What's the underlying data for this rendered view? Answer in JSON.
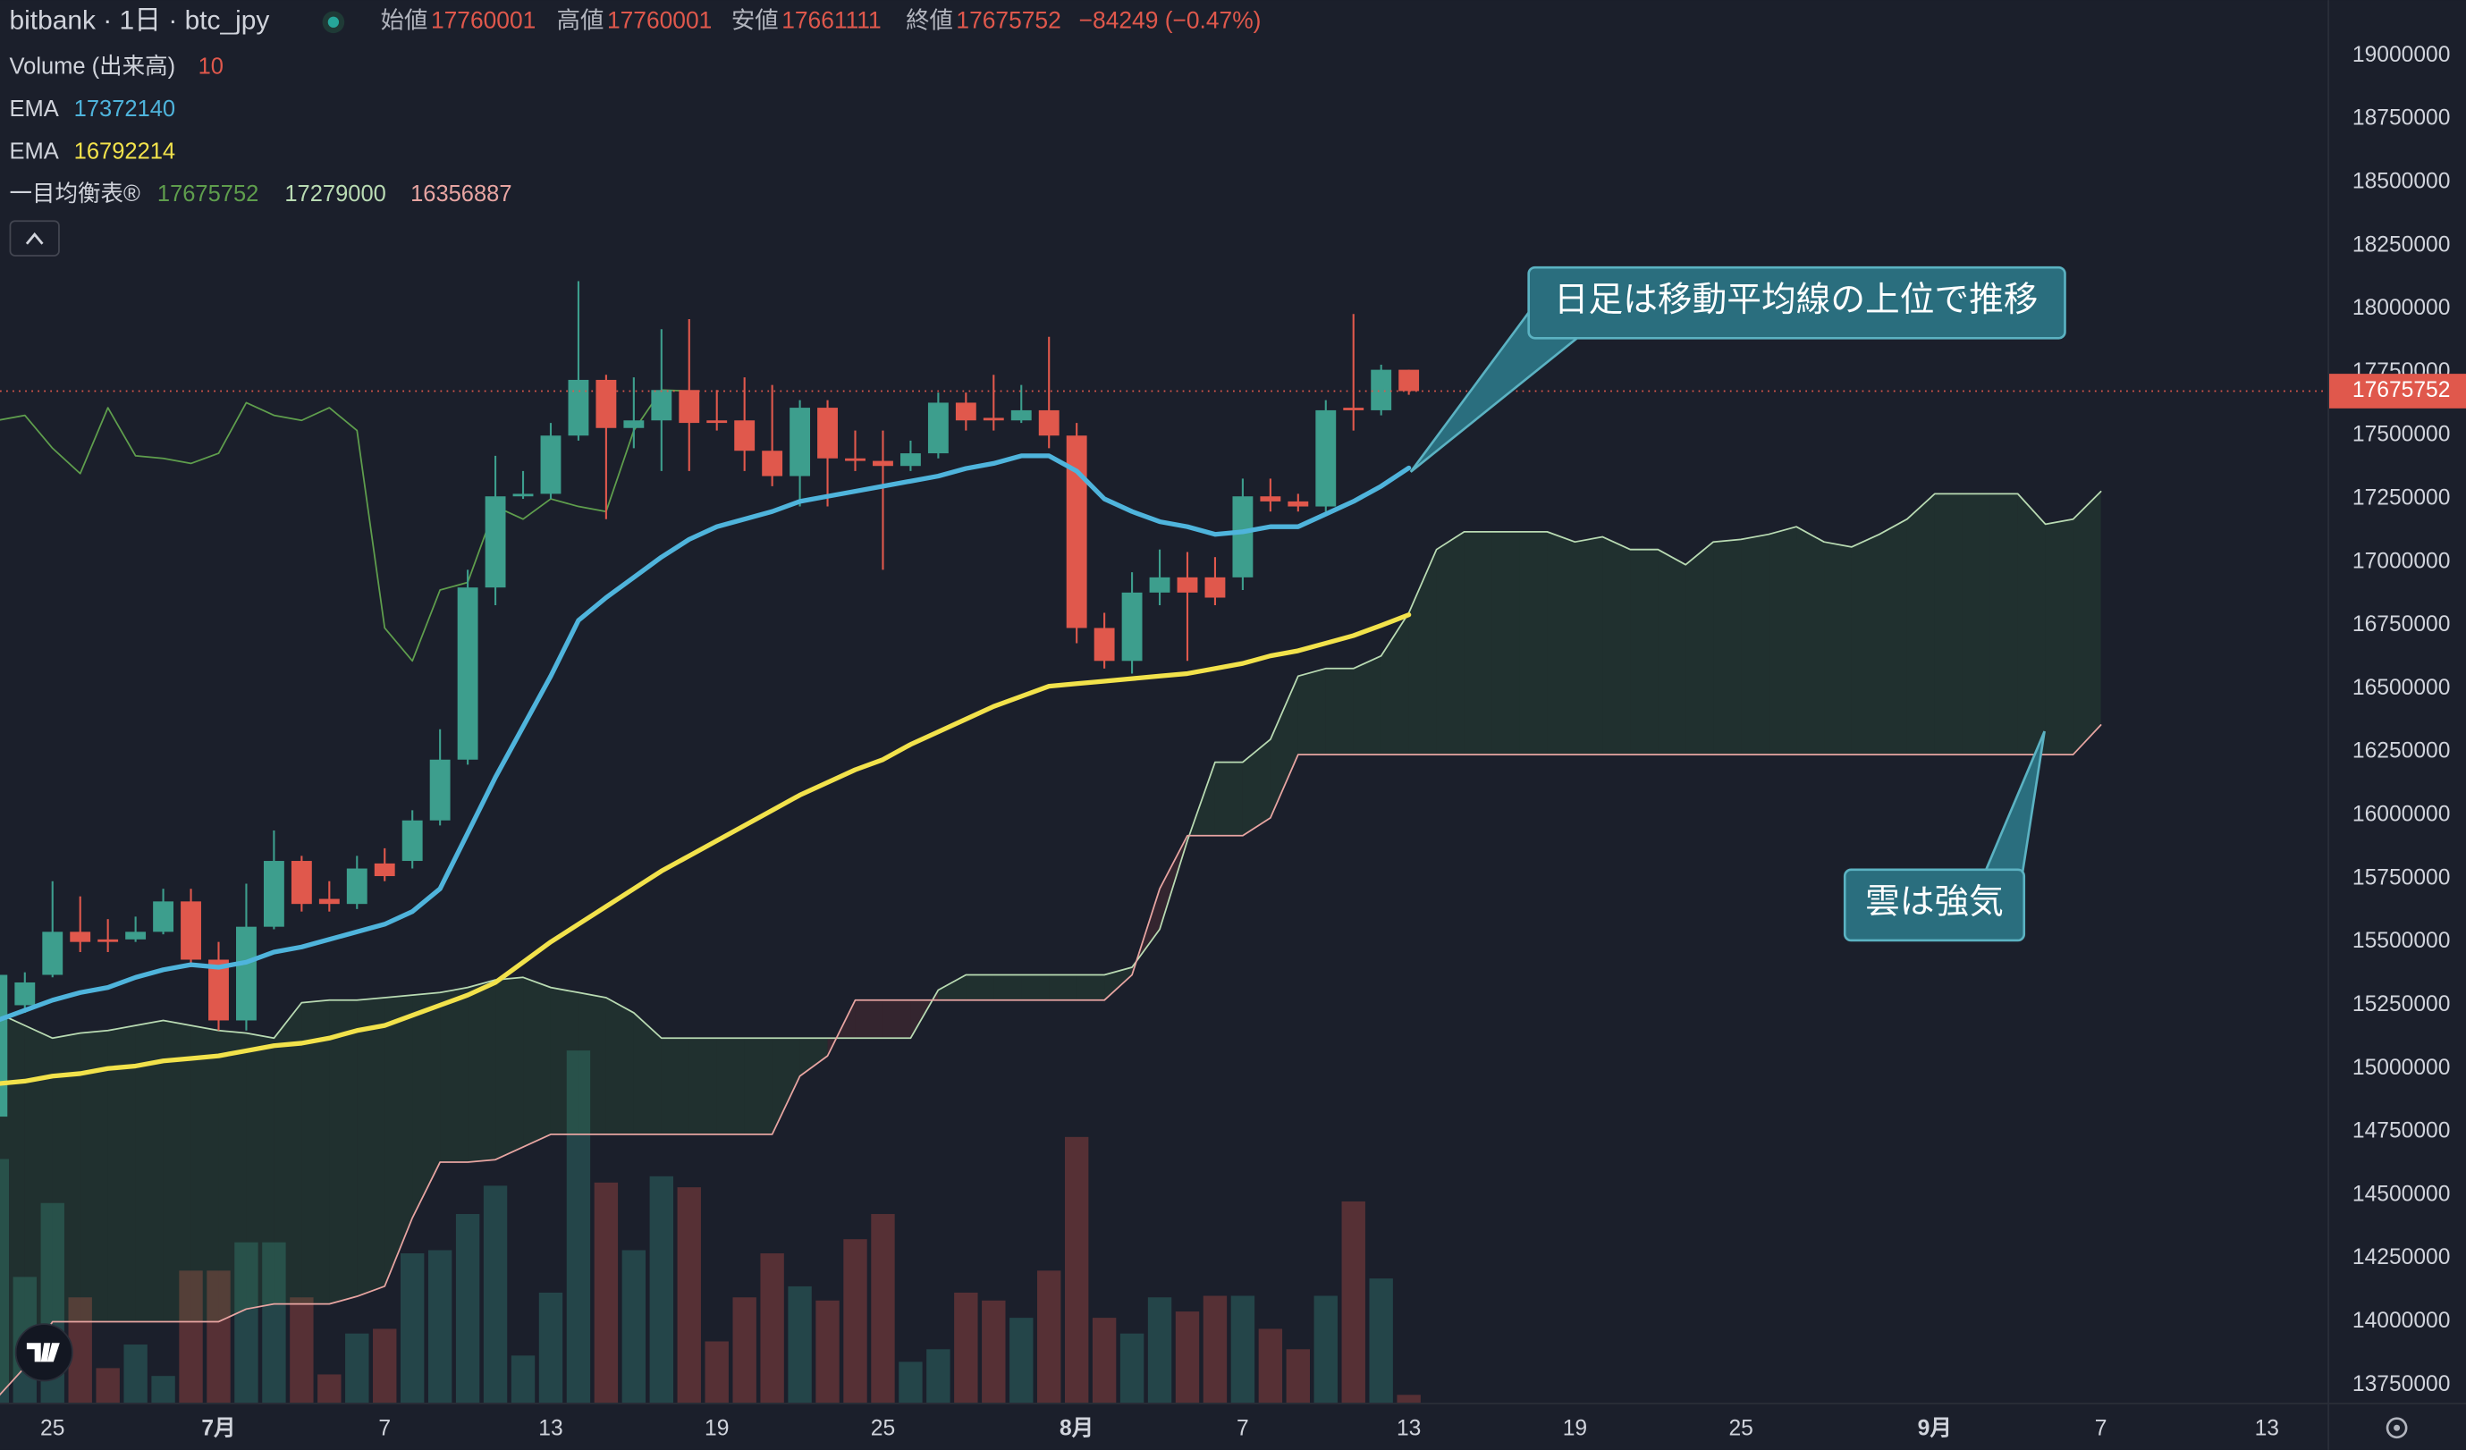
{
  "chart_data": {
    "type": "candlestick",
    "title": "bitbank · 1日 · btc_jpy",
    "ohlc_labels": [
      "始値",
      "高値",
      "安値",
      "終値"
    ],
    "change_label": "−84249 (−0.47%)",
    "up_color": "#3d9e8d",
    "down_color": "#e0584c",
    "grid": false,
    "ylim": [
      13680000,
      19220000
    ],
    "yticks": [
      13750000,
      14000000,
      14250000,
      14500000,
      14750000,
      15000000,
      15250000,
      15500000,
      15750000,
      16000000,
      16250000,
      16500000,
      16750000,
      17000000,
      17250000,
      17500000,
      17750000,
      18000000,
      18250000,
      18500000,
      18750000,
      19000000
    ],
    "categories": [
      null,
      null,
      "25",
      null,
      null,
      null,
      null,
      null,
      "7月",
      null,
      null,
      null,
      null,
      null,
      "7",
      null,
      null,
      null,
      null,
      null,
      "13",
      null,
      null,
      null,
      null,
      null,
      "19",
      null,
      null,
      null,
      null,
      null,
      "25",
      null,
      null,
      null,
      null,
      null,
      null,
      "8月",
      null,
      null,
      null,
      null,
      null,
      "7",
      null,
      null,
      null,
      null,
      null,
      "13",
      null,
      null,
      null,
      null,
      null,
      "19",
      null,
      null,
      null,
      null,
      null,
      "25",
      null,
      null,
      null,
      null,
      null,
      null,
      "9月",
      null,
      null,
      null,
      null,
      null,
      "7",
      null,
      null,
      null,
      null,
      null,
      "13"
    ],
    "open": [
      14810000,
      15250000,
      15370000,
      15540000,
      15510000,
      15510000,
      15540000,
      15660000,
      15430000,
      15190000,
      15560000,
      15820000,
      15670000,
      15650000,
      15810000,
      15820000,
      15980000,
      16220000,
      16900000,
      17260000,
      17270000,
      17500000,
      17720000,
      17530000,
      17560000,
      17680000,
      17560000,
      17560000,
      17440000,
      17340000,
      17610000,
      17410000,
      17400000,
      17380000,
      17430000,
      17630000,
      17570000,
      17560000,
      17600000,
      17500000,
      16740000,
      16610000,
      16880000,
      16940000,
      16940000,
      16940000,
      17260000,
      17240000,
      17220000,
      17610000,
      17600000,
      17760001,
      null,
      null,
      null,
      null,
      null,
      null,
      null,
      null,
      null,
      null,
      null,
      null,
      null,
      null,
      null,
      null,
      null,
      null,
      null,
      null,
      null,
      null,
      null,
      null,
      null,
      null,
      null,
      null,
      null,
      null,
      null
    ],
    "high": [
      15400000,
      15380000,
      15740000,
      15680000,
      15590000,
      15600000,
      15710000,
      15710000,
      15500000,
      15730000,
      15940000,
      15840000,
      15740000,
      15840000,
      15870000,
      16020000,
      16340000,
      16970000,
      17420000,
      17360000,
      17550000,
      18110000,
      17740000,
      17730000,
      17920000,
      17960000,
      17680000,
      17730000,
      17700000,
      17640000,
      17640000,
      17520000,
      17520000,
      17480000,
      17670000,
      17670000,
      17740000,
      17700000,
      17890000,
      17550000,
      16800000,
      16960000,
      17050000,
      17040000,
      17020000,
      17330000,
      17330000,
      17270000,
      17640000,
      17980000,
      17780000,
      17760001,
      null,
      null,
      null,
      null,
      null,
      null,
      null,
      null,
      null,
      null,
      null,
      null,
      null,
      null,
      null,
      null,
      null,
      null,
      null,
      null,
      null,
      null,
      null,
      null,
      null,
      null,
      null,
      null,
      null,
      null,
      null
    ],
    "low": [
      14800000,
      15220000,
      15360000,
      15460000,
      15460000,
      15500000,
      15530000,
      15400000,
      15150000,
      15150000,
      15550000,
      15620000,
      15620000,
      15630000,
      15740000,
      15790000,
      15960000,
      16200000,
      16830000,
      17250000,
      17250000,
      17480000,
      17170000,
      17450000,
      17360000,
      17360000,
      17520000,
      17360000,
      17300000,
      17220000,
      17220000,
      17360000,
      16970000,
      17360000,
      17410000,
      17520000,
      17520000,
      17550000,
      17450000,
      16680000,
      16580000,
      16560000,
      16830000,
      16610000,
      16830000,
      16890000,
      17200000,
      17200000,
      17200000,
      17520000,
      17580000,
      17661111,
      null,
      null,
      null,
      null,
      null,
      null,
      null,
      null,
      null,
      null,
      null,
      null,
      null,
      null,
      null,
      null,
      null,
      null,
      null,
      null,
      null,
      null,
      null,
      null,
      null,
      null,
      null,
      null,
      null,
      null,
      null
    ],
    "close": [
      15370000,
      15340000,
      15540000,
      15500000,
      15500000,
      15540000,
      15660000,
      15430000,
      15190000,
      15560000,
      15820000,
      15650000,
      15650000,
      15790000,
      15760000,
      15980000,
      16220000,
      16900000,
      17260000,
      17270000,
      17500000,
      17720000,
      17530000,
      17560000,
      17680000,
      17550000,
      17550000,
      17440000,
      17340000,
      17610000,
      17410000,
      17400000,
      17380000,
      17430000,
      17630000,
      17560000,
      17560000,
      17600000,
      17500000,
      16740000,
      16610000,
      16880000,
      16940000,
      16880000,
      16860000,
      17260000,
      17240000,
      17220000,
      17600000,
      17600000,
      17760000,
      17675752,
      null,
      null,
      null,
      null,
      null,
      null,
      null,
      null,
      null,
      null,
      null,
      null,
      null,
      null,
      null,
      null,
      null,
      null,
      null,
      null,
      null,
      null,
      null,
      null,
      null,
      null,
      null,
      null,
      null,
      null,
      null
    ],
    "volume": {
      "name": "Volume (出来高)",
      "values": [
        310,
        160,
        254,
        134,
        44,
        74,
        34,
        168,
        168,
        204,
        204,
        134,
        36,
        88,
        94,
        190,
        194,
        240,
        276,
        60,
        140,
        448,
        280,
        194,
        288,
        274,
        78,
        134,
        190,
        148,
        130,
        208,
        240,
        52,
        68,
        140,
        130,
        108,
        168,
        338,
        108,
        88,
        134,
        116,
        136,
        136,
        94,
        68,
        136,
        256,
        158,
        10,
        null,
        null,
        null,
        null,
        null,
        null,
        null,
        null,
        null,
        null,
        null,
        null,
        null,
        null,
        null,
        null,
        null,
        null,
        null,
        null,
        null,
        null,
        null,
        null,
        null,
        null,
        null,
        null,
        null,
        null,
        null
      ]
    },
    "ema": [
      {
        "name": "EMA",
        "color": "#4fb4dc",
        "values": [
          15190000,
          15230000,
          15270000,
          15300000,
          15320000,
          15360000,
          15390000,
          15410000,
          15400000,
          15420000,
          15460000,
          15480000,
          15510000,
          15540000,
          15570000,
          15620000,
          15710000,
          15930000,
          16150000,
          16350000,
          16550000,
          16770000,
          16860000,
          16940000,
          17020000,
          17090000,
          17140000,
          17170000,
          17200000,
          17240000,
          17260000,
          17280000,
          17300000,
          17320000,
          17340000,
          17370000,
          17390000,
          17420000,
          17420000,
          17360000,
          17250000,
          17200000,
          17160000,
          17140000,
          17110000,
          17120000,
          17140000,
          17140000,
          17190000,
          17240000,
          17300000,
          17372140,
          null,
          null,
          null,
          null,
          null,
          null,
          null,
          null,
          null,
          null,
          null,
          null,
          null,
          null,
          null,
          null,
          null,
          null,
          null,
          null,
          null,
          null,
          null,
          null,
          null,
          null,
          null,
          null,
          null,
          null,
          null
        ]
      },
      {
        "name": "EMA",
        "color": "#f2e24b",
        "values": [
          14940000,
          14950000,
          14970000,
          14980000,
          15000000,
          15010000,
          15030000,
          15040000,
          15050000,
          15070000,
          15090000,
          15100000,
          15120000,
          15150000,
          15170000,
          15210000,
          15250000,
          15290000,
          15340000,
          15420000,
          15500000,
          15570000,
          15640000,
          15710000,
          15780000,
          15840000,
          15900000,
          15960000,
          16020000,
          16080000,
          16130000,
          16180000,
          16220000,
          16280000,
          16330000,
          16380000,
          16430000,
          16470000,
          16510000,
          16520000,
          16530000,
          16540000,
          16550000,
          16560000,
          16580000,
          16600000,
          16630000,
          16650000,
          16680000,
          16710000,
          16750000,
          16792214,
          null,
          null,
          null,
          null,
          null,
          null,
          null,
          null,
          null,
          null,
          null,
          null,
          null,
          null,
          null,
          null,
          null,
          null,
          null,
          null,
          null,
          null,
          null,
          null,
          null,
          null,
          null,
          null,
          null,
          null,
          null
        ]
      }
    ],
    "ichimoku": {
      "name": "一目均衡表®",
      "lagging": {
        "color": "#5f9e4d",
        "values": [
          17560000,
          17580000,
          17450000,
          17350000,
          17610000,
          17420000,
          17410000,
          17390000,
          17430000,
          17630000,
          17580000,
          17560000,
          17610000,
          17520000,
          16740000,
          16610000,
          16890000,
          16920000,
          17220000,
          17170000,
          17250000,
          17220000,
          17200000,
          17520000,
          17680000,
          17675752,
          null,
          null,
          null,
          null,
          null,
          null,
          null,
          null,
          null,
          null,
          null,
          null,
          null,
          null,
          null,
          null,
          null,
          null,
          null,
          null,
          null,
          null,
          null,
          null,
          null,
          null,
          null,
          null,
          null,
          null,
          null,
          null,
          null,
          null,
          null,
          null,
          null,
          null,
          null,
          null,
          null,
          null,
          null,
          null,
          null,
          null,
          null
        ]
      },
      "span_a": {
        "color": "#b9dbb3",
        "values": [
          15220000,
          15170000,
          15120000,
          15140000,
          15150000,
          15170000,
          15190000,
          15170000,
          15150000,
          15140000,
          15120000,
          15260000,
          15270000,
          15270000,
          15280000,
          15290000,
          15300000,
          15320000,
          15350000,
          15360000,
          15320000,
          15300000,
          15280000,
          15220000,
          15120000,
          15120000,
          15120000,
          15120000,
          15120000,
          15120000,
          15120000,
          15120000,
          15120000,
          15120000,
          15310000,
          15370000,
          15370000,
          15370000,
          15370000,
          15370000,
          15370000,
          15400000,
          15550000,
          15900000,
          16210000,
          16210000,
          16300000,
          16550000,
          16580000,
          16580000,
          16630000,
          16800000,
          17050000,
          17120000,
          17120000,
          17120000,
          17120000,
          17080000,
          17100000,
          17050000,
          17050000,
          16990000,
          17080000,
          17090000,
          17110000,
          17140000,
          17080000,
          17060000,
          17110000,
          17170000,
          17270000,
          17270000,
          17270000,
          17270000,
          17150000,
          17170000,
          17279000,
          null,
          null,
          null,
          null,
          null,
          null
        ]
      },
      "span_b": {
        "color": "#e8a5a2",
        "values": [
          13700000,
          13820000,
          14000000,
          14000000,
          14000000,
          14000000,
          14000000,
          14000000,
          14000000,
          14050000,
          14070000,
          14070000,
          14070000,
          14100000,
          14140000,
          14410000,
          14630000,
          14630000,
          14640000,
          14690000,
          14740000,
          14740000,
          14740000,
          14740000,
          14740000,
          14740000,
          14740000,
          14740000,
          14740000,
          14970000,
          15050000,
          15270000,
          15270000,
          15270000,
          15270000,
          15270000,
          15270000,
          15270000,
          15270000,
          15270000,
          15270000,
          15370000,
          15710000,
          15920000,
          15920000,
          15920000,
          15990000,
          16240000,
          16240000,
          16240000,
          16240000,
          16240000,
          16240000,
          16240000,
          16240000,
          16240000,
          16240000,
          16240000,
          16240000,
          16240000,
          16240000,
          16240000,
          16240000,
          16240000,
          16240000,
          16240000,
          16240000,
          16240000,
          16240000,
          16240000,
          16240000,
          16240000,
          16240000,
          16240000,
          16240000,
          16240000,
          16356887,
          null,
          null,
          null,
          null,
          null,
          null
        ]
      }
    },
    "annotations": [
      {
        "text": "日足は移動平均線の上位で推移"
      },
      {
        "text": "雲は強気"
      }
    ]
  }
}
